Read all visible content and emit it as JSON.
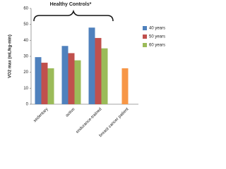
{
  "chart_data": {
    "type": "bar",
    "annotation": "Healthy Controls*",
    "y_label": "VO2 max (mL/kg·min)",
    "categories": [
      "sedentary",
      "active",
      "endurance-trained",
      "breast cancer patient"
    ],
    "series": [
      {
        "name": "40 years",
        "color": "#4f81bd",
        "values": [
          29.5,
          36.5,
          48,
          null
        ]
      },
      {
        "name": "50 years",
        "color": "#c0504d",
        "values": [
          26,
          32,
          41.5,
          null
        ]
      },
      {
        "name": "60 years",
        "color": "#9bbb59",
        "values": [
          22.5,
          27.5,
          35,
          null
        ]
      },
      {
        "color": "#f79646",
        "values": [
          null,
          null,
          null,
          22.5
        ]
      }
    ],
    "ylim": [
      0,
      60
    ],
    "yticks": [
      0,
      10,
      20,
      30,
      40,
      50,
      60
    ],
    "legend": "right"
  }
}
